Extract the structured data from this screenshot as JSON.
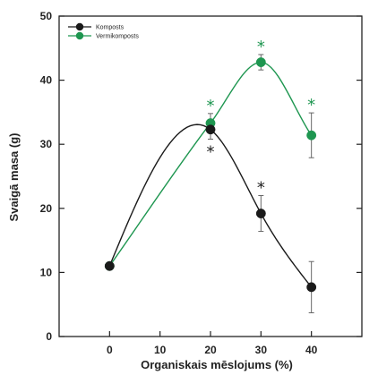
{
  "chart_data": {
    "type": "line",
    "title": "",
    "xlabel": "Organiskais mēslojums (%)",
    "ylabel": "Svaigā masa (g)",
    "x_ticks": [
      0,
      10,
      20,
      30,
      40
    ],
    "y_ticks": [
      0,
      10,
      20,
      30,
      40,
      50
    ],
    "xlim": [
      -10,
      50
    ],
    "ylim": [
      0,
      50
    ],
    "legend_position": "top-left",
    "grid": false,
    "significance_marker": "*",
    "series": [
      {
        "name": "Komposts",
        "color": "#1a1a1a",
        "curve": "smooth",
        "points": [
          {
            "x": 0,
            "y": 11.0,
            "err": 0,
            "sig": false
          },
          {
            "x": 20,
            "y": 32.3,
            "err": 1.5,
            "sig": true
          },
          {
            "x": 30,
            "y": 19.2,
            "err": 2.8,
            "sig": true
          },
          {
            "x": 40,
            "y": 7.7,
            "err": 4.0,
            "sig": false
          }
        ]
      },
      {
        "name": "Vermikomposts",
        "color": "#1e9650",
        "curve": "smooth",
        "points": [
          {
            "x": 0,
            "y": 11.0,
            "err": 0,
            "sig": false
          },
          {
            "x": 20,
            "y": 33.3,
            "err": 1.5,
            "sig": true
          },
          {
            "x": 30,
            "y": 42.8,
            "err": 1.2,
            "sig": true
          },
          {
            "x": 40,
            "y": 31.4,
            "err": 3.5,
            "sig": true
          }
        ]
      }
    ]
  }
}
